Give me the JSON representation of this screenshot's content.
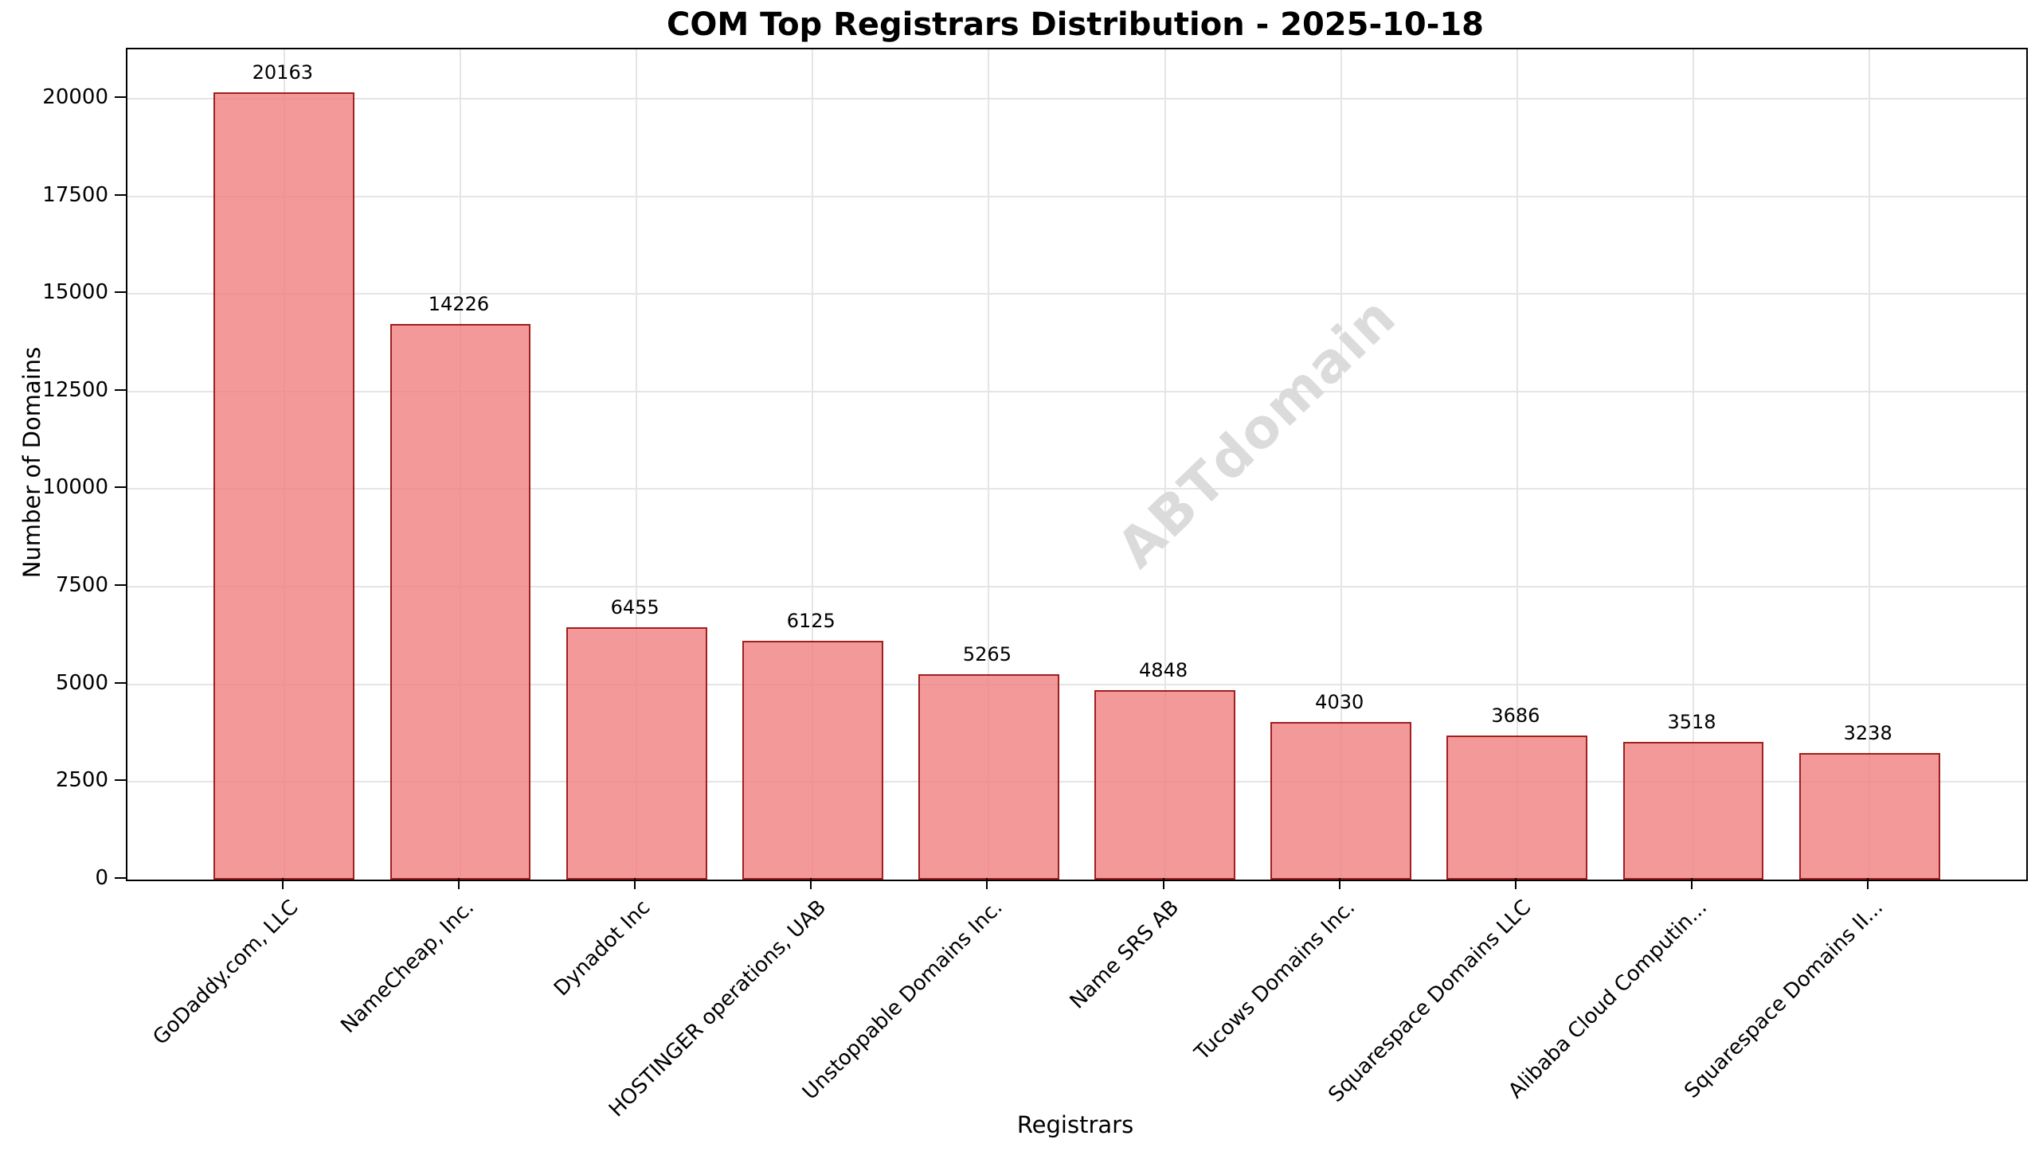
{
  "chart_data": {
    "type": "bar",
    "title": "COM Top Registrars Distribution - 2025-10-18",
    "xlabel": "Registrars",
    "ylabel": "Number of Domains",
    "categories": [
      "GoDaddy.com, LLC",
      "NameCheap, Inc.",
      "Dynadot Inc",
      "HOSTINGER operations, UAB",
      "Unstoppable Domains Inc.",
      "Name SRS AB",
      "Tucows Domains Inc.",
      "Squarespace Domains LLC",
      "Alibaba Cloud Computin...",
      "Squarespace Domains II..."
    ],
    "values": [
      20163,
      14226,
      6455,
      6125,
      5265,
      4848,
      4030,
      3686,
      3518,
      3238
    ],
    "yticks": [
      0,
      2500,
      5000,
      7500,
      10000,
      12500,
      15000,
      17500,
      20000
    ],
    "ylim": [
      0,
      21264
    ],
    "grid": true,
    "legend": "none",
    "watermark": "ABTdomain",
    "colors": {
      "bar_fill": "#F08080",
      "bar_fill_alpha": "0.8",
      "bar_edge": "#8B0000",
      "grid": "#E5E5E5",
      "text": "#000000",
      "watermark": "#DBDBDB"
    }
  }
}
